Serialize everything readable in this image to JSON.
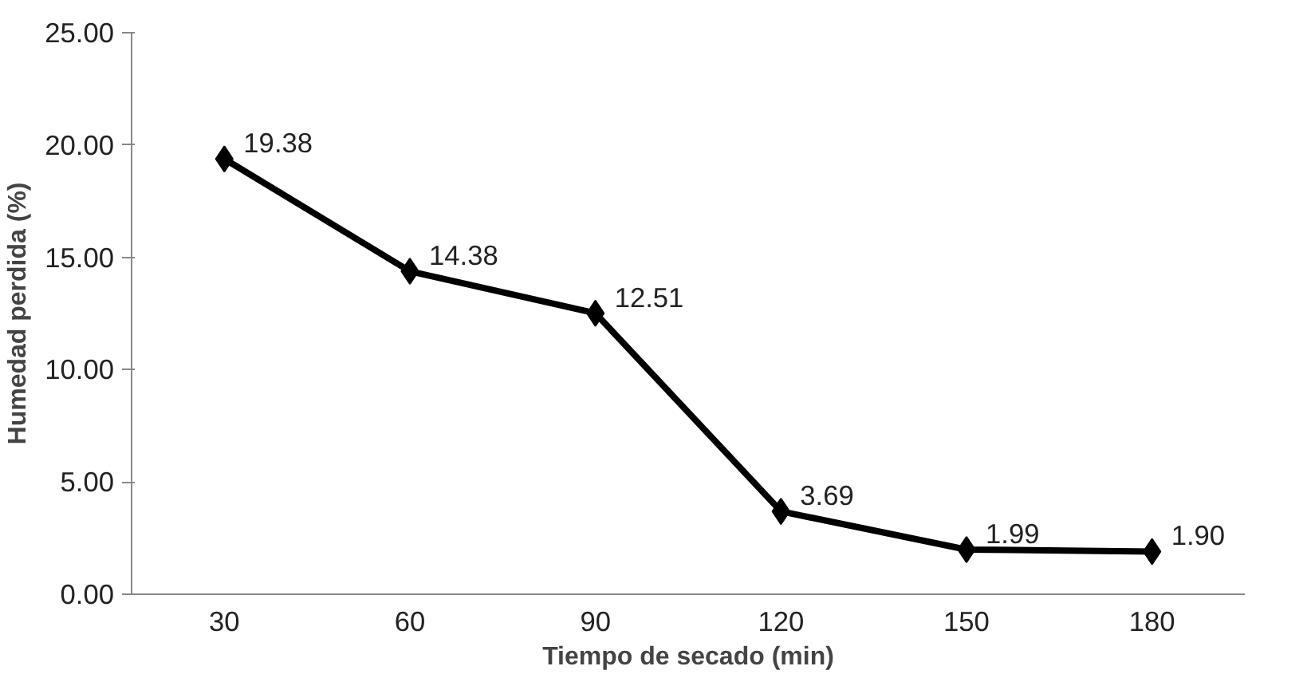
{
  "chart_data": {
    "type": "line",
    "xlabel": "Tiempo de secado (min)",
    "ylabel": "Humedad perdida (%)",
    "categories": [
      "30",
      "60",
      "90",
      "120",
      "150",
      "180"
    ],
    "values": [
      19.38,
      14.38,
      12.51,
      3.69,
      1.99,
      1.9
    ],
    "value_labels": [
      "19.38",
      "14.38",
      "12.51",
      "3.69",
      "1.99",
      "1.90"
    ],
    "color": "#000000",
    "marker": "diamond",
    "line_style": "solid",
    "grid": false,
    "ylim": [
      0,
      25
    ],
    "yticks": [
      {
        "value": 0,
        "label": "0.00"
      },
      {
        "value": 5,
        "label": "5.00"
      },
      {
        "value": 10,
        "label": "10.00"
      },
      {
        "value": 15,
        "label": "15.00"
      },
      {
        "value": 20,
        "label": "20.00"
      },
      {
        "value": 25,
        "label": "25.00"
      }
    ]
  }
}
